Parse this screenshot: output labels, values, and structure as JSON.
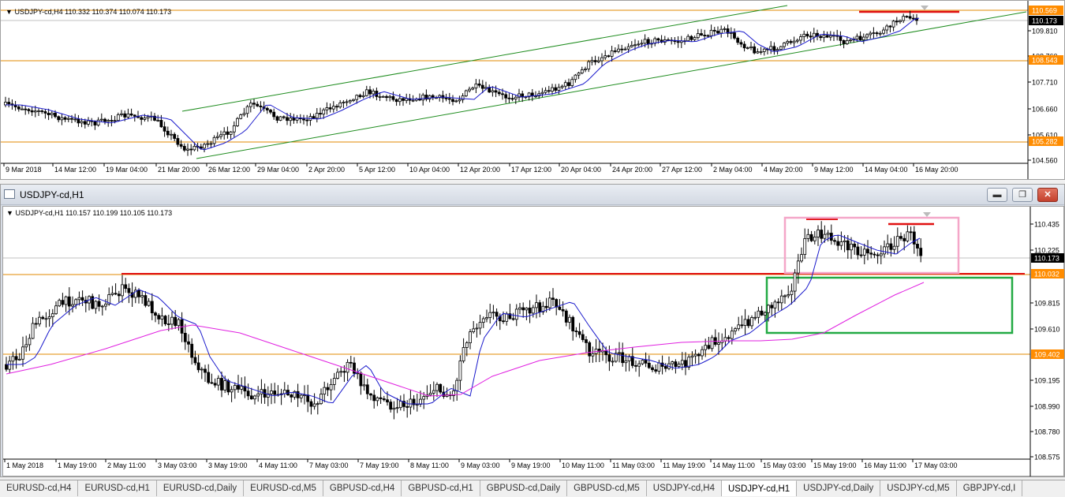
{
  "h4": {
    "info": "USDJPY-cd,H4  110.332 110.374 110.074 110.173",
    "price_labels": [
      {
        "text": "110.569",
        "kind": "orange"
      },
      {
        "text": "110.173",
        "kind": "black"
      },
      {
        "text": "109.810",
        "kind": "plain"
      },
      {
        "text": "108.760",
        "kind": "plain"
      },
      {
        "text": "108.543",
        "kind": "orange"
      },
      {
        "text": "107.710",
        "kind": "plain"
      },
      {
        "text": "106.660",
        "kind": "plain"
      },
      {
        "text": "105.610",
        "kind": "plain"
      },
      {
        "text": "105.282",
        "kind": "orange"
      },
      {
        "text": "104.560",
        "kind": "plain"
      }
    ],
    "time_labels": [
      "9 Mar 2018",
      "14 Mar 12:00",
      "19 Mar 04:00",
      "21 Mar 20:00",
      "26 Mar 12:00",
      "29 Mar 04:00",
      "2 Apr 20:00",
      "5 Apr 12:00",
      "10 Apr 04:00",
      "12 Apr 20:00",
      "17 Apr 12:00",
      "20 Apr 04:00",
      "24 Apr 20:00",
      "27 Apr 12:00",
      "2 May 04:00",
      "4 May 20:00",
      "9 May 12:00",
      "14 May 04:00",
      "16 May 20:00"
    ]
  },
  "h1": {
    "window_title": "USDJPY-cd,H1",
    "info": "USDJPY-cd,H1  110.157 110.199 110.105 110.173",
    "minimize_glyph": "▬",
    "restore_glyph": "❐",
    "close_glyph": "✕",
    "price_labels": [
      {
        "text": "110.435",
        "kind": "plain"
      },
      {
        "text": "110.225",
        "kind": "plain"
      },
      {
        "text": "110.173",
        "kind": "black"
      },
      {
        "text": "110.032",
        "kind": "orange"
      },
      {
        "text": "109.815",
        "kind": "plain"
      },
      {
        "text": "109.610",
        "kind": "plain"
      },
      {
        "text": "109.402",
        "kind": "orange"
      },
      {
        "text": "109.195",
        "kind": "plain"
      },
      {
        "text": "108.990",
        "kind": "plain"
      },
      {
        "text": "108.780",
        "kind": "plain"
      },
      {
        "text": "108.575",
        "kind": "plain"
      }
    ],
    "time_labels": [
      "1 May 2018",
      "1 May 19:00",
      "2 May 11:00",
      "3 May 03:00",
      "3 May 19:00",
      "4 May 11:00",
      "7 May 03:00",
      "7 May 19:00",
      "8 May 11:00",
      "9 May 03:00",
      "9 May 19:00",
      "10 May 11:00",
      "11 May 03:00",
      "11 May 19:00",
      "14 May 11:00",
      "15 May 03:00",
      "15 May 19:00",
      "16 May 11:00",
      "17 May 03:00"
    ]
  },
  "tabs": [
    {
      "label": "EURUSD-cd,H4",
      "active": false
    },
    {
      "label": "EURUSD-cd,H1",
      "active": false
    },
    {
      "label": "EURUSD-cd,Daily",
      "active": false
    },
    {
      "label": "EURUSD-cd,M5",
      "active": false
    },
    {
      "label": "GBPUSD-cd,H4",
      "active": false
    },
    {
      "label": "GBPUSD-cd,H1",
      "active": false
    },
    {
      "label": "GBPUSD-cd,Daily",
      "active": false
    },
    {
      "label": "GBPUSD-cd,M5",
      "active": false
    },
    {
      "label": "USDJPY-cd,H4",
      "active": false
    },
    {
      "label": "USDJPY-cd,H1",
      "active": true
    },
    {
      "label": "USDJPY-cd,Daily",
      "active": false
    },
    {
      "label": "USDJPY-cd,M5",
      "active": false
    },
    {
      "label": "GBPJPY-cd,I",
      "active": false
    }
  ],
  "colors": {
    "candle": "#000000",
    "ma_fast": "#1a1acc",
    "ma_slow": "#e020e0",
    "channel": "#1e8c1e",
    "support_line": "#e08a00",
    "resistance_marker": "#e01010",
    "pink_box": "#f4a6c8",
    "green_box": "#22aa44",
    "orange_label": "#ff8c00"
  }
}
